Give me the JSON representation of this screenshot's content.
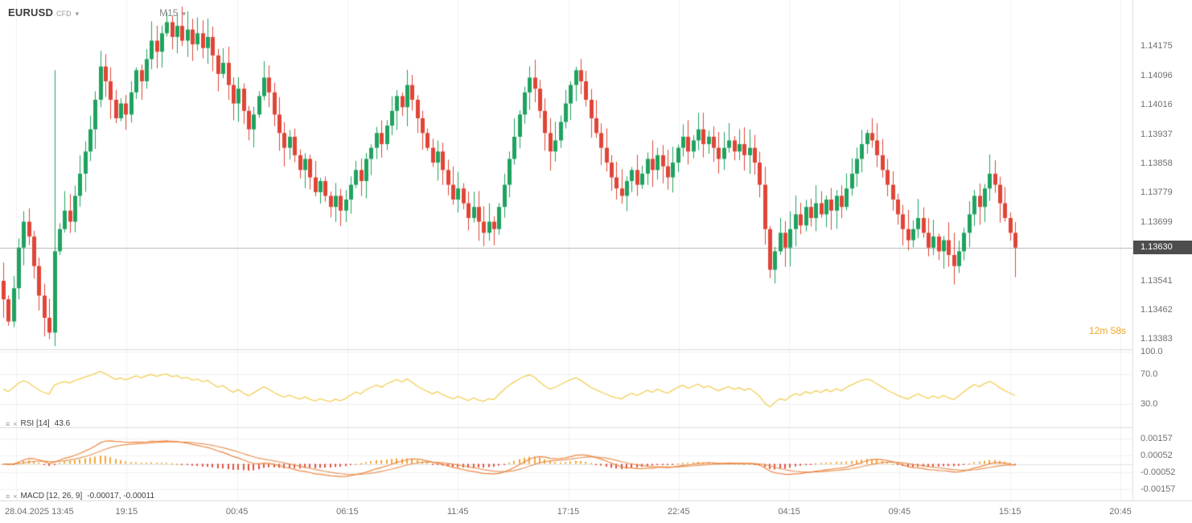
{
  "header": {
    "symbol": "EURUSD",
    "instrument_type": "CFD",
    "timeframe": "M15"
  },
  "price_axis": {
    "labels": [
      "1.14175",
      "1.14096",
      "1.14016",
      "1.13937",
      "1.13858",
      "1.13779",
      "1.13699",
      "1.13541",
      "1.13462",
      "1.13383"
    ],
    "current_price": "1.13630"
  },
  "countdown": "12m 58s",
  "indicators": {
    "rsi": {
      "label": "RSI [14]",
      "value": "43.6",
      "axis_labels": [
        "100.0",
        "70.0",
        "30.0"
      ]
    },
    "macd": {
      "label": "MACD [12, 26, 9]",
      "values": "-0.00017,  -0.00011",
      "axis_labels": [
        "0.00157",
        "0.00052",
        "-0.00052",
        "-0.00157"
      ]
    }
  },
  "time_axis": {
    "labels": [
      "28.04.2025 13:45",
      "19:15",
      "00:45",
      "06:15",
      "11:45",
      "17:15",
      "22:45",
      "04:15",
      "09:45",
      "15:15",
      "20:45"
    ]
  },
  "chart_data": {
    "type": "candlestick",
    "symbol": "EURUSD",
    "timeframe": "M15",
    "title": "EURUSD CFD M15",
    "price_ticks": [
      1.14175,
      1.14096,
      1.14016,
      1.13937,
      1.13858,
      1.13779,
      1.13699,
      1.1363,
      1.13541,
      1.13462,
      1.13383
    ],
    "price_range": {
      "top": 1.143,
      "bottom": 1.13355
    },
    "current_price": 1.1363,
    "colors": {
      "up": "#1fa35f",
      "down": "#e04537",
      "rsi_line": "#f3cf57",
      "macd_line": "#ef8640",
      "signal_line": "#e8965a",
      "hist_pos": "#f2a63b",
      "hist_neg": "#df5340",
      "badge_bg": "#4d4d4d",
      "countdown": "#f0a429"
    },
    "candles": {
      "first_open": 1.1354,
      "closes": [
        1.1349,
        1.1343,
        1.1352,
        1.1363,
        1.137,
        1.1366,
        1.1358,
        1.135,
        1.1344,
        1.134,
        1.1362,
        1.1368,
        1.1373,
        1.137,
        1.1377,
        1.1383,
        1.1389,
        1.1395,
        1.1403,
        1.1412,
        1.1408,
        1.1403,
        1.1398,
        1.1402,
        1.1399,
        1.1405,
        1.1411,
        1.1408,
        1.1414,
        1.1419,
        1.1416,
        1.1421,
        1.1424,
        1.142,
        1.1423,
        1.1419,
        1.1422,
        1.1418,
        1.1421,
        1.1417,
        1.142,
        1.1415,
        1.141,
        1.1413,
        1.1407,
        1.1402,
        1.1406,
        1.14,
        1.1395,
        1.1399,
        1.1404,
        1.1409,
        1.1405,
        1.1399,
        1.1394,
        1.139,
        1.1393,
        1.1388,
        1.1384,
        1.1387,
        1.1382,
        1.1378,
        1.1381,
        1.1377,
        1.1374,
        1.1377,
        1.1373,
        1.1376,
        1.138,
        1.1384,
        1.1381,
        1.1387,
        1.139,
        1.1394,
        1.1391,
        1.1396,
        1.14,
        1.1404,
        1.1401,
        1.1407,
        1.1403,
        1.1398,
        1.1394,
        1.139,
        1.1386,
        1.1389,
        1.1384,
        1.138,
        1.1376,
        1.1379,
        1.1375,
        1.1371,
        1.1374,
        1.137,
        1.1367,
        1.137,
        1.1368,
        1.1374,
        1.138,
        1.1387,
        1.1393,
        1.1399,
        1.1405,
        1.1409,
        1.1406,
        1.14,
        1.1394,
        1.1389,
        1.1392,
        1.1397,
        1.1402,
        1.1407,
        1.1411,
        1.1408,
        1.1403,
        1.1398,
        1.1394,
        1.139,
        1.1386,
        1.1382,
        1.1379,
        1.1377,
        1.1381,
        1.1384,
        1.138,
        1.1383,
        1.1387,
        1.1384,
        1.1388,
        1.1385,
        1.1382,
        1.1386,
        1.139,
        1.1393,
        1.1389,
        1.1392,
        1.1395,
        1.1391,
        1.1393,
        1.139,
        1.1387,
        1.139,
        1.1392,
        1.1389,
        1.1391,
        1.1388,
        1.139,
        1.1386,
        1.138,
        1.1368,
        1.1357,
        1.1362,
        1.1367,
        1.1363,
        1.1368,
        1.1372,
        1.1369,
        1.1374,
        1.1371,
        1.1375,
        1.1372,
        1.1376,
        1.1373,
        1.1377,
        1.1374,
        1.1379,
        1.1383,
        1.1387,
        1.1391,
        1.1394,
        1.1392,
        1.1388,
        1.1384,
        1.138,
        1.1376,
        1.1372,
        1.1368,
        1.1365,
        1.1368,
        1.1371,
        1.1367,
        1.1363,
        1.1366,
        1.1362,
        1.1365,
        1.1361,
        1.1358,
        1.1362,
        1.1367,
        1.1372,
        1.1377,
        1.1374,
        1.1379,
        1.1383,
        1.138,
        1.1375,
        1.1371,
        1.1367,
        1.1363
      ],
      "wick_overrides": {
        "10": [
          1.1411,
          1.1341
        ],
        "186": [
          1.1367,
          1.1353
        ],
        "198": [
          1.1369,
          1.1355
        ]
      }
    },
    "sub_charts": [
      {
        "type": "line",
        "name": "RSI",
        "period": 14,
        "last_value": 43.6,
        "range": [
          0,
          100
        ],
        "ticks": [
          100.0,
          70.0,
          30.0
        ]
      },
      {
        "type": "macd",
        "name": "MACD",
        "params": [
          12,
          26,
          9
        ],
        "last_values": [
          -0.00017,
          -0.00011
        ],
        "range": [
          -0.00225,
          0.00225
        ],
        "ticks": [
          0.00157,
          0.00052,
          -0.00052,
          -0.00157
        ]
      }
    ],
    "x_ticks": [
      "28.04.2025 13:45",
      "19:15",
      "00:45",
      "06:15",
      "11:45",
      "17:15",
      "22:45",
      "04:15",
      "09:45",
      "15:15",
      "20:45"
    ]
  }
}
